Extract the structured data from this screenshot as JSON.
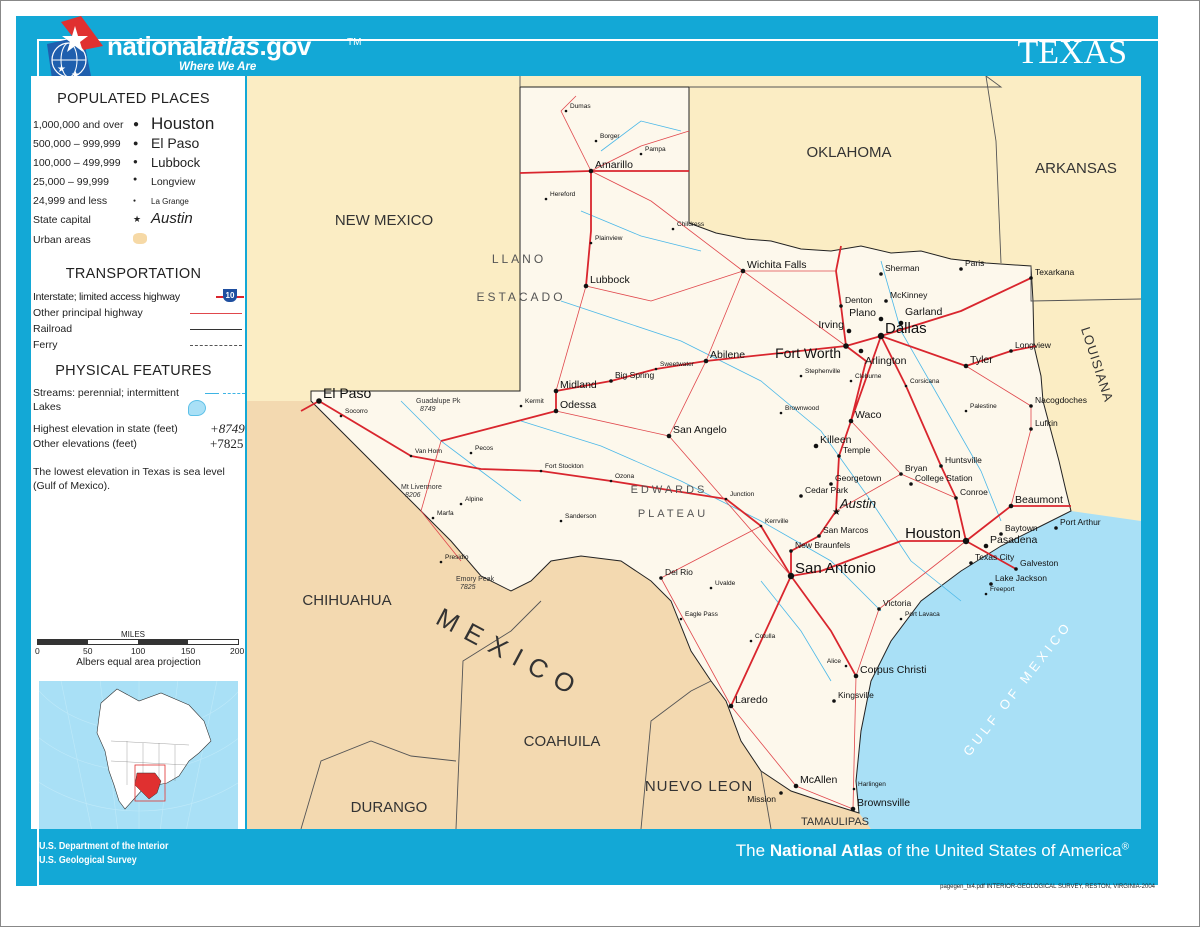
{
  "header": {
    "brand_a": "national",
    "brand_b": "atlas",
    "brand_c": ".gov",
    "tm": "TM",
    "tagline": "Where We Are",
    "title": "TEXAS"
  },
  "legend": {
    "populated_title": "POPULATED PLACES",
    "populated": [
      {
        "range": "1,000,000 and over",
        "example": "Houston"
      },
      {
        "range": "500,000 – 999,999",
        "example": "El Paso"
      },
      {
        "range": "100,000 – 499,999",
        "example": "Lubbock"
      },
      {
        "range": "25,000 – 99,999",
        "example": "Longview"
      },
      {
        "range": "24,999 and less",
        "example": "La Grange"
      },
      {
        "range": "State capital",
        "example": "Austin"
      },
      {
        "range": "Urban areas",
        "example": ""
      }
    ],
    "transport_title": "TRANSPORTATION",
    "transport": [
      "Interstate; limited access highway",
      "Other principal highway",
      "Railroad",
      "Ferry"
    ],
    "interstate_shield": "10",
    "physical_title": "PHYSICAL FEATURES",
    "streams": "Streams:  perennial; intermittent",
    "lakes": "Lakes",
    "highest": "Highest elevation in state (feet)",
    "highest_value": "+8749",
    "other": "Other elevations (feet)",
    "other_value": "+7825",
    "note": "The lowest elevation in Texas is sea level (Gulf of Mexico).",
    "scale_title": "MILES",
    "scale_ticks": [
      "0",
      "50",
      "100",
      "150",
      "200"
    ],
    "projection": "Albers equal area projection"
  },
  "map": {
    "colors": {
      "texas": "#fdf8ec",
      "us_states": "#fbedc4",
      "mexico": "#f3d9b0",
      "water": "#a9e0f6",
      "interstate": "#d9262e",
      "highway": "#e0474c",
      "frame": "#13a8d6"
    },
    "regions": [
      {
        "name": "NEW MEXICO"
      },
      {
        "name": "OKLAHOMA"
      },
      {
        "name": "ARKANSAS"
      },
      {
        "name": "LOUISIANA"
      },
      {
        "name": "CHIHUAHUA"
      },
      {
        "name": "MEXICO"
      },
      {
        "name": "COAHUILA"
      },
      {
        "name": "DURANGO"
      },
      {
        "name": "NUEVO LEON"
      },
      {
        "name": "TAMAULIPAS"
      },
      {
        "name": "GULF OF MEXICO"
      },
      {
        "name": "LLANO"
      },
      {
        "name": "ESTACADO"
      },
      {
        "name": "EDWARDS"
      },
      {
        "name": "PLATEAU"
      }
    ],
    "cities": [
      {
        "name": "Houston",
        "rank": 1
      },
      {
        "name": "Dallas",
        "rank": 1
      },
      {
        "name": "San Antonio",
        "rank": 1
      },
      {
        "name": "El Paso",
        "rank": 2
      },
      {
        "name": "Austin",
        "rank": 0
      },
      {
        "name": "Fort Worth",
        "rank": 2
      },
      {
        "name": "Arlington",
        "rank": 3
      },
      {
        "name": "Lubbock",
        "rank": 3
      },
      {
        "name": "Amarillo",
        "rank": 3
      },
      {
        "name": "Corpus Christi",
        "rank": 3
      },
      {
        "name": "Laredo",
        "rank": 3
      },
      {
        "name": "Brownsville",
        "rank": 3
      },
      {
        "name": "McAllen",
        "rank": 3
      },
      {
        "name": "Beaumont",
        "rank": 3
      },
      {
        "name": "Waco",
        "rank": 3
      },
      {
        "name": "Abilene",
        "rank": 3
      },
      {
        "name": "Midland",
        "rank": 3
      },
      {
        "name": "Odessa",
        "rank": 3
      },
      {
        "name": "San Angelo",
        "rank": 3
      },
      {
        "name": "Wichita Falls",
        "rank": 3
      },
      {
        "name": "Tyler",
        "rank": 3
      },
      {
        "name": "Killeen",
        "rank": 3
      },
      {
        "name": "Plano",
        "rank": 3
      },
      {
        "name": "Garland",
        "rank": 3
      },
      {
        "name": "Irving",
        "rank": 3
      },
      {
        "name": "Pasadena",
        "rank": 3
      },
      {
        "name": "Longview",
        "rank": 4
      },
      {
        "name": "Texarkana",
        "rank": 4
      },
      {
        "name": "Denton",
        "rank": 4
      },
      {
        "name": "McKinney",
        "rank": 4
      },
      {
        "name": "Sherman",
        "rank": 4
      },
      {
        "name": "Temple",
        "rank": 4
      },
      {
        "name": "Bryan",
        "rank": 4
      },
      {
        "name": "College Station",
        "rank": 4
      },
      {
        "name": "Victoria",
        "rank": 4
      },
      {
        "name": "Del Rio",
        "rank": 4
      },
      {
        "name": "Nacogdoches",
        "rank": 4
      },
      {
        "name": "Lufkin",
        "rank": 4
      },
      {
        "name": "Big Spring",
        "rank": 4
      },
      {
        "name": "Huntsville",
        "rank": 4
      },
      {
        "name": "Conroe",
        "rank": 4
      },
      {
        "name": "New Braunfels",
        "rank": 4
      },
      {
        "name": "San Marcos",
        "rank": 4
      },
      {
        "name": "Georgetown",
        "rank": 4
      },
      {
        "name": "Cedar Park",
        "rank": 4
      },
      {
        "name": "Baytown",
        "rank": 4
      },
      {
        "name": "Texas City",
        "rank": 4
      },
      {
        "name": "Galveston",
        "rank": 4
      },
      {
        "name": "Lake Jackson",
        "rank": 4
      },
      {
        "name": "Port Arthur",
        "rank": 4
      },
      {
        "name": "Kingsville",
        "rank": 4
      },
      {
        "name": "Harlingen",
        "rank": 5
      },
      {
        "name": "Mission",
        "rank": 4
      },
      {
        "name": "Paris",
        "rank": 4
      },
      {
        "name": "Socorro",
        "rank": 5
      },
      {
        "name": "Pecos",
        "rank": 5
      },
      {
        "name": "Fort Stockton",
        "rank": 5
      },
      {
        "name": "Alpine",
        "rank": 5
      },
      {
        "name": "Marfa",
        "rank": 5
      },
      {
        "name": "Van Horn",
        "rank": 5
      },
      {
        "name": "Uvalde",
        "rank": 5
      },
      {
        "name": "Eagle Pass",
        "rank": 5
      },
      {
        "name": "Kerrville",
        "rank": 5
      },
      {
        "name": "Junction",
        "rank": 5
      },
      {
        "name": "Ozona",
        "rank": 5
      },
      {
        "name": "Sweetwater",
        "rank": 5
      },
      {
        "name": "Dumas",
        "rank": 5
      },
      {
        "name": "Pampa",
        "rank": 5
      },
      {
        "name": "Childress",
        "rank": 5
      },
      {
        "name": "Plainview",
        "rank": 5
      },
      {
        "name": "Cleburne",
        "rank": 5
      },
      {
        "name": "Corsicana",
        "rank": 5
      },
      {
        "name": "Palestine",
        "rank": 5
      },
      {
        "name": "Freeport",
        "rank": 5
      },
      {
        "name": "Port Lavaca",
        "rank": 5
      },
      {
        "name": "Alice",
        "rank": 5
      },
      {
        "name": "Stephenville",
        "rank": 5
      },
      {
        "name": "Brownwood",
        "rank": 5
      },
      {
        "name": "Hereford",
        "rank": 5
      },
      {
        "name": "Borger",
        "rank": 5
      },
      {
        "name": "Kermit",
        "rank": 5
      },
      {
        "name": "Presidio",
        "rank": 5
      },
      {
        "name": "Sanderson",
        "rank": 5
      },
      {
        "name": "Cotulla",
        "rank": 5
      }
    ],
    "peaks": [
      {
        "name": "Guadalupe Pk",
        "elev": "8749"
      },
      {
        "name": "Emory Peak",
        "elev": "7825"
      },
      {
        "name": "Mt Livermore",
        "elev": "8206"
      }
    ]
  },
  "footer": {
    "agency1": "U.S. Department of the Interior",
    "agency2": "U.S. Geological Survey",
    "atlas_pre": "The ",
    "atlas_bold": "National Atlas",
    "atlas_post": " of the United States of America",
    "reg": "®"
  },
  "credit": "pagegen_tx4.pdf  INTERIOR-GEOLOGICAL SURVEY, RESTON, VIRGINIA-2004"
}
